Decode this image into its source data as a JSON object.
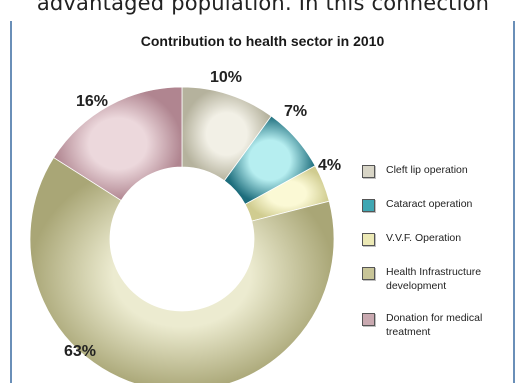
{
  "top_text": "advantaged population. In this connection",
  "chart_data": {
    "type": "pie",
    "style": "donut",
    "title": "Contribution to health sector in 2010",
    "categories": [
      "Cleft lip operation",
      "Cataract operation",
      "V.V.F. Operation",
      "Health Infrastructure development",
      "Donation for medical treatment"
    ],
    "values": [
      10,
      7,
      4,
      63,
      16
    ],
    "labels": [
      "10%",
      "7%",
      "4%",
      "63%",
      "16%"
    ],
    "colors": [
      "#d8d5c6",
      "#3fa7b3",
      "#ece9b5",
      "#c8c598",
      "#c9a9b0"
    ],
    "legend_position": "right"
  }
}
